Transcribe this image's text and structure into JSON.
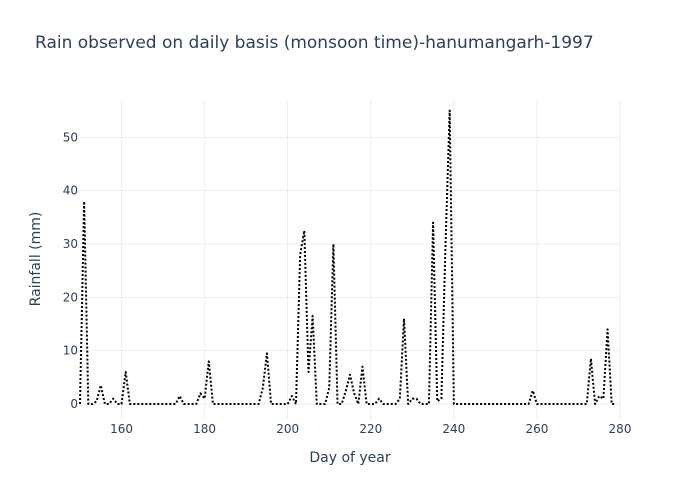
{
  "chart_data": {
    "type": "line",
    "title": "Rain observed on daily basis (monsoon time)-hanumangarh-1997",
    "xlabel": "Day of year",
    "ylabel": "Rainfall (mm)",
    "xlim": [
      150,
      280
    ],
    "ylim": [
      -3,
      57
    ],
    "xticks": [
      160,
      180,
      200,
      220,
      240,
      260,
      280
    ],
    "yticks": [
      0,
      10,
      20,
      30,
      40,
      50
    ],
    "grid": true,
    "line_style": "dotted",
    "line_color": "#000000",
    "x": [
      150,
      151,
      152,
      153,
      154,
      155,
      156,
      157,
      158,
      159,
      160,
      161,
      162,
      163,
      164,
      165,
      166,
      167,
      168,
      169,
      170,
      171,
      172,
      173,
      174,
      175,
      176,
      177,
      178,
      179,
      180,
      181,
      182,
      183,
      184,
      185,
      186,
      187,
      188,
      189,
      190,
      191,
      192,
      193,
      194,
      195,
      196,
      197,
      198,
      199,
      200,
      201,
      202,
      203,
      204,
      205,
      206,
      207,
      208,
      209,
      210,
      211,
      212,
      213,
      214,
      215,
      216,
      217,
      218,
      219,
      220,
      221,
      222,
      223,
      224,
      225,
      226,
      227,
      228,
      229,
      230,
      231,
      232,
      233,
      234,
      235,
      236,
      237,
      238,
      239,
      240,
      241,
      242,
      243,
      244,
      245,
      246,
      247,
      248,
      249,
      250,
      251,
      252,
      253,
      254,
      255,
      256,
      257,
      258,
      259,
      260,
      261,
      262,
      263,
      264,
      265,
      266,
      267,
      268,
      269,
      270,
      271,
      272,
      273,
      274,
      275,
      276,
      277,
      278,
      279
    ],
    "y": [
      0,
      38,
      0,
      0,
      0.5,
      3.5,
      0,
      0,
      1,
      0,
      0,
      6,
      0,
      0,
      0,
      0,
      0,
      0,
      0,
      0,
      0,
      0,
      0,
      0,
      1.5,
      0,
      0,
      0,
      0,
      2,
      1,
      8,
      0,
      0,
      0,
      0,
      0,
      0,
      0,
      0,
      0,
      0,
      0,
      0,
      3,
      9.5,
      0,
      0,
      0,
      0,
      0,
      1.5,
      0,
      28,
      32.5,
      6,
      16.5,
      0,
      0,
      0,
      3,
      30,
      0,
      0,
      2.5,
      5.5,
      2,
      0,
      7,
      0,
      0,
      0,
      1,
      0,
      0,
      0,
      0,
      1,
      16,
      0,
      1,
      1,
      0,
      0,
      0,
      34,
      0.5,
      1,
      30,
      55,
      0,
      0,
      0,
      0,
      0,
      0,
      0,
      0,
      0,
      0,
      0,
      0,
      0,
      0,
      0,
      0,
      0,
      0,
      0,
      2.5,
      0,
      0,
      0,
      0,
      0,
      0,
      0,
      0,
      0,
      0,
      0,
      0,
      0,
      8.5,
      0,
      1.5,
      1,
      14,
      0,
      0
    ]
  }
}
